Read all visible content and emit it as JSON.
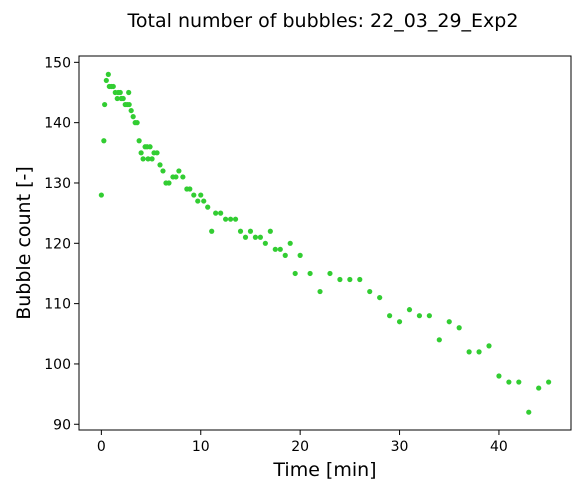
{
  "chart_data": {
    "type": "scatter",
    "title": "Total number of bubbles: 22_03_29_Exp2",
    "xlabel": "Time [min]",
    "ylabel": "Bubble count [-]",
    "xlim": [
      -2.25,
      47.25
    ],
    "ylim": [
      89.05,
      151.05
    ],
    "xticks": [
      0,
      10,
      20,
      30,
      40
    ],
    "yticks": [
      90,
      100,
      110,
      120,
      130,
      140,
      150
    ],
    "grid": false,
    "marker_color": "#32cd32",
    "series": [
      {
        "points": [
          [
            0.0,
            128
          ],
          [
            0.25,
            137
          ],
          [
            0.33,
            143
          ],
          [
            0.5,
            147
          ],
          [
            0.7,
            148
          ],
          [
            0.8,
            146
          ],
          [
            1.0,
            146
          ],
          [
            1.2,
            146
          ],
          [
            1.4,
            145
          ],
          [
            1.6,
            144
          ],
          [
            1.7,
            145
          ],
          [
            1.9,
            145
          ],
          [
            2.0,
            144
          ],
          [
            2.2,
            144
          ],
          [
            2.4,
            143
          ],
          [
            2.6,
            143
          ],
          [
            2.75,
            145
          ],
          [
            2.8,
            143
          ],
          [
            3.0,
            142
          ],
          [
            3.2,
            141
          ],
          [
            3.4,
            140
          ],
          [
            3.6,
            140
          ],
          [
            3.8,
            137
          ],
          [
            4.0,
            135
          ],
          [
            4.2,
            134
          ],
          [
            4.4,
            136
          ],
          [
            4.6,
            136
          ],
          [
            4.7,
            134
          ],
          [
            4.9,
            136
          ],
          [
            5.1,
            134
          ],
          [
            5.3,
            135
          ],
          [
            5.6,
            135
          ],
          [
            5.9,
            133
          ],
          [
            6.2,
            132
          ],
          [
            6.5,
            130
          ],
          [
            6.8,
            130
          ],
          [
            7.2,
            131
          ],
          [
            7.5,
            131
          ],
          [
            7.8,
            132
          ],
          [
            8.2,
            131
          ],
          [
            8.6,
            129
          ],
          [
            8.9,
            129
          ],
          [
            9.3,
            128
          ],
          [
            9.7,
            127
          ],
          [
            10.0,
            128
          ],
          [
            10.3,
            127
          ],
          [
            10.7,
            126
          ],
          [
            11.1,
            122
          ],
          [
            11.5,
            125
          ],
          [
            12.0,
            125
          ],
          [
            12.5,
            124
          ],
          [
            13.0,
            124
          ],
          [
            13.5,
            124
          ],
          [
            14.0,
            122
          ],
          [
            14.5,
            121
          ],
          [
            15.0,
            122
          ],
          [
            15.5,
            121
          ],
          [
            16.0,
            121
          ],
          [
            16.5,
            120
          ],
          [
            17.0,
            122
          ],
          [
            17.5,
            119
          ],
          [
            18.0,
            119
          ],
          [
            18.5,
            118
          ],
          [
            19.0,
            120
          ],
          [
            19.5,
            115
          ],
          [
            20.0,
            118
          ],
          [
            21.0,
            115
          ],
          [
            22.0,
            112
          ],
          [
            23.0,
            115
          ],
          [
            24.0,
            114
          ],
          [
            25.0,
            114
          ],
          [
            26.0,
            114
          ],
          [
            27.0,
            112
          ],
          [
            28.0,
            111
          ],
          [
            29.0,
            108
          ],
          [
            30.0,
            107
          ],
          [
            31.0,
            109
          ],
          [
            32.0,
            108
          ],
          [
            33.0,
            108
          ],
          [
            34.0,
            104
          ],
          [
            35.0,
            107
          ],
          [
            36.0,
            106
          ],
          [
            37.0,
            102
          ],
          [
            38.0,
            102
          ],
          [
            39.0,
            103
          ],
          [
            40.0,
            98
          ],
          [
            41.0,
            97
          ],
          [
            42.0,
            97
          ],
          [
            43.0,
            92
          ],
          [
            44.0,
            96
          ],
          [
            45.0,
            97
          ]
        ]
      }
    ]
  }
}
